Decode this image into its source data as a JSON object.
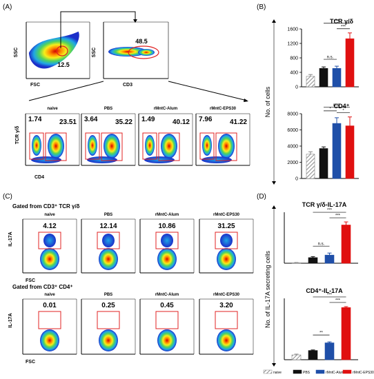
{
  "panels": {
    "A": {
      "label": "(A)",
      "gate_top_plots": [
        {
          "x_axis": "FSC",
          "y_axis": "SSC",
          "gate_value": "12.5"
        },
        {
          "x_axis": "CD3",
          "y_axis": "SSC",
          "gate_value": "48.5"
        }
      ],
      "y_axis_bottom": "TCR γ/δ",
      "x_axis_bottom": "CD4",
      "groups": [
        {
          "name": "naive",
          "left": "1.74",
          "right": "23.51"
        },
        {
          "name": "PBS",
          "left": "3.64",
          "right": "35.22"
        },
        {
          "name": "rMntC-Alum",
          "left": "1.49",
          "right": "40.12"
        },
        {
          "name": "rMntC-EPS30",
          "left": "7.96",
          "right": "41.22"
        }
      ]
    },
    "B": {
      "label": "(B)",
      "ylabel": "No. of cells",
      "charts": [
        {
          "title": "TCR γ/δ",
          "yticks": [
            "0",
            "400",
            "800",
            "1200",
            "1600"
          ],
          "sig": [
            "n.s.",
            "***",
            "***"
          ]
        },
        {
          "title": "CD4⁺",
          "yticks": [
            "0",
            "2000",
            "4000",
            "6000",
            "8000"
          ],
          "sig": [
            "*",
            "n.s.",
            "*"
          ]
        }
      ]
    },
    "C": {
      "label": "(C)",
      "row1": {
        "title": "Gated from CD3⁺ TCR γ/δ",
        "values": [
          "4.12",
          "12.14",
          "10.86",
          "31.25"
        ]
      },
      "row2": {
        "title": "Gated from CD3⁺ CD4⁺",
        "values": [
          "0.01",
          "0.25",
          "0.45",
          "3.20"
        ]
      },
      "groups": [
        "naive",
        "PBS",
        "rMntC-Alum",
        "rMntC-EPS30"
      ],
      "y_axis": "IL-17A",
      "x_axis": "FSC"
    },
    "D": {
      "label": "(D)",
      "ylabel": "No. of IL-17A secreting cells",
      "charts": [
        {
          "title": "TCR γ/δ-IL-17A",
          "sig": [
            "n.s.",
            "***",
            "***"
          ]
        },
        {
          "title": "CD4⁺-IL-17A",
          "sig": [
            "**",
            "***",
            "***"
          ]
        }
      ],
      "legend": [
        "naive",
        "PBS",
        "rMntC-Alum",
        "rMntC-EPS30"
      ]
    }
  },
  "chart_data": [
    {
      "type": "bar",
      "title": "TCR γ/δ",
      "categories": [
        "naive",
        "PBS",
        "rMntC-Alum",
        "rMntC-EPS30"
      ],
      "values": [
        290,
        510,
        510,
        1330
      ],
      "errors": [
        50,
        40,
        60,
        160
      ],
      "ylabel": "No. of cells",
      "ylim": [
        0,
        1600
      ]
    },
    {
      "type": "bar",
      "title": "CD4⁺",
      "categories": [
        "naive",
        "PBS",
        "rMntC-Alum",
        "rMntC-EPS30"
      ],
      "values": [
        3000,
        3700,
        6800,
        6500
      ],
      "errors": [
        300,
        200,
        700,
        1100
      ],
      "ylabel": "No. of cells",
      "ylim": [
        0,
        8000
      ]
    },
    {
      "type": "bar",
      "title": "TCR γ/δ-IL-17A",
      "categories": [
        "naive",
        "PBS",
        "rMntC-Alum",
        "rMntC-EPS30"
      ],
      "values": [
        2,
        22,
        32,
        150
      ],
      "errors": [
        1,
        4,
        8,
        12
      ],
      "ylabel": "No. of IL-17A secreting cells",
      "ylim": [
        0,
        200
      ]
    },
    {
      "type": "bar",
      "title": "CD4⁺-IL-17A",
      "categories": [
        "naive",
        "PBS",
        "rMntC-Alum",
        "rMntC-EPS30"
      ],
      "values": [
        25,
        48,
        88,
        272
      ],
      "errors": [
        4,
        3,
        5,
        5
      ],
      "ylabel": "No. of IL-17A secreting cells",
      "ylim": [
        0,
        320
      ]
    }
  ],
  "colors": {
    "naive": "#bdbdbd",
    "PBS": "#111111",
    "rMntC-Alum": "#1f4fa8",
    "rMntC-EPS30": "#e01010",
    "gate": "#e02020"
  }
}
